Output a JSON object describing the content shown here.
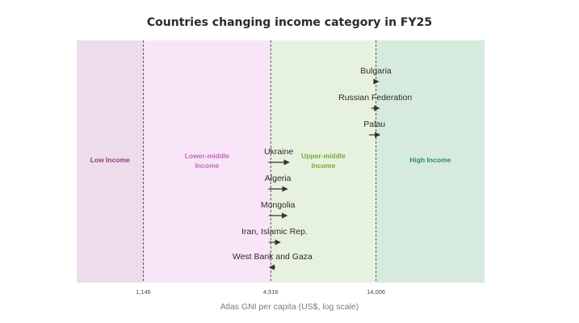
{
  "chart_data": {
    "type": "scatter",
    "title": "Countries changing income category in FY25",
    "xlabel": "Atlas GNI per capita (US$, log scale)",
    "ylabel": "",
    "x_scale": "log",
    "xlim": [
      560,
      45000
    ],
    "thresholds": [
      {
        "value": 1146,
        "label": "1,146"
      },
      {
        "value": 4516,
        "label": "4,516"
      },
      {
        "value": 14006,
        "label": "14,006"
      }
    ],
    "bands": [
      {
        "name": "Low Income",
        "from": 560,
        "to": 1146,
        "fill": "#eddcec",
        "text_color": "#8e3c7e"
      },
      {
        "name": "Lower-middle Income",
        "line1": "Lower-middle",
        "line2": "Income",
        "from": 1146,
        "to": 4516,
        "fill": "#f8e6f8",
        "text_color": "#c466c0"
      },
      {
        "name": "Upper-middle Income",
        "line1": "Upper-middle",
        "line2": "Income",
        "from": 4516,
        "to": 14006,
        "fill": "#e7f1df",
        "text_color": "#72ad3a"
      },
      {
        "name": "High Income",
        "from": 14006,
        "to": 45000,
        "fill": "#d6ebde",
        "text_color": "#2f8a58"
      }
    ],
    "countries": [
      {
        "name": "Bulgaria",
        "from": 13600,
        "to": 14400
      },
      {
        "name": "Russian Federation",
        "from": 13300,
        "to": 14500
      },
      {
        "name": "Palau",
        "from": 13000,
        "to": 14600
      },
      {
        "name": "Ukraine",
        "from": 4400,
        "to": 5500
      },
      {
        "name": "Algeria",
        "from": 4400,
        "to": 5400
      },
      {
        "name": "Mongolia",
        "from": 4420,
        "to": 5380
      },
      {
        "name": "Iran, Islamic Rep.",
        "from": 4420,
        "to": 5000
      },
      {
        "name": "West Bank and Gaza",
        "from": 4750,
        "to": 4450
      }
    ],
    "grid": false,
    "legend": "none",
    "colors": {
      "arrow": "#333333",
      "threshold_line": "#555555",
      "tick_text": "#444444"
    }
  }
}
